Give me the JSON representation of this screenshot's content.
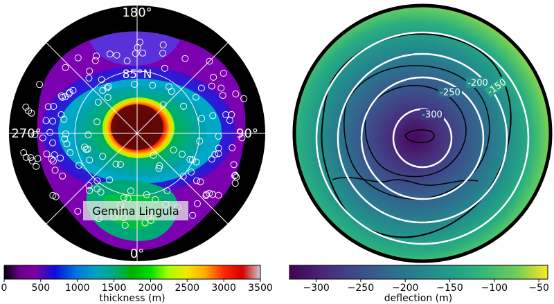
{
  "left_panel": {
    "map_labels": {
      "lon_top": "180°",
      "lon_left": "270°",
      "lon_right": "90°",
      "lon_bottom": "0°",
      "lat_ring": "85°N",
      "region": "Gemina Lingula"
    },
    "colorbar": {
      "label": "thickness (m)",
      "ticks": [
        "0",
        "500",
        "1000",
        "1500",
        "2000",
        "2500",
        "3000",
        "3500"
      ],
      "range": [
        0,
        3500
      ],
      "colormap": "nipy_spectral"
    }
  },
  "right_panel": {
    "contour_labels": [
      "-300",
      "-250",
      "-200",
      "-150"
    ],
    "colorbar": {
      "label": "deflection (m)",
      "ticks": [
        "−300",
        "−250",
        "−200",
        "−150",
        "−100",
        "−50"
      ],
      "range": [
        -330,
        -40
      ],
      "colormap": "viridis"
    }
  },
  "colors": {
    "background": "#ffffff",
    "map_background": "#000000",
    "grid_lines": "#ffffff",
    "viridis_low": "#440154",
    "viridis_high": "#fde725",
    "spectral_low": "#000000",
    "spectral_high": "#cccccc"
  }
}
